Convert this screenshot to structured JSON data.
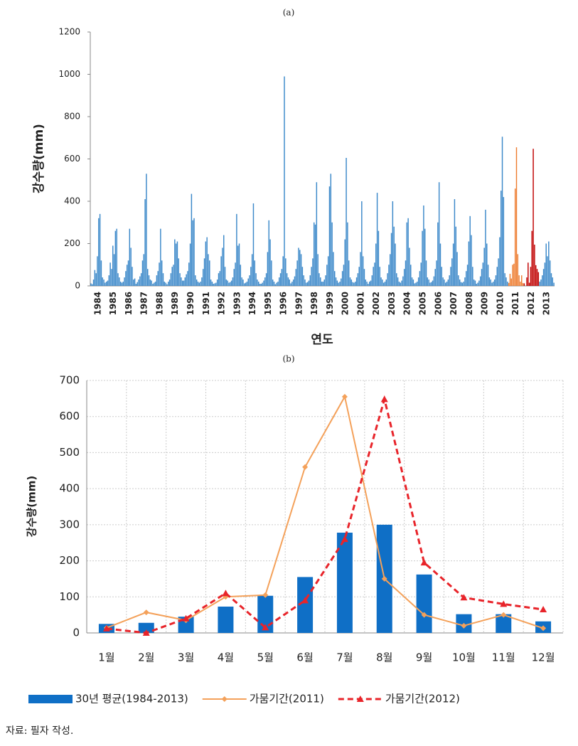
{
  "chart_data": [
    {
      "type": "bar",
      "title": "(a)",
      "ylabel": "강수량(mm)",
      "xlabel": "연도",
      "categories": [
        "1984",
        "1985",
        "1986",
        "1987",
        "1988",
        "1989",
        "1990",
        "1991",
        "1992",
        "1993",
        "1994",
        "1995",
        "1996",
        "1997",
        "1998",
        "1999",
        "2000",
        "2001",
        "2002",
        "2003",
        "2004",
        "2005",
        "2006",
        "2007",
        "2008",
        "2009",
        "2010",
        "2011",
        "2012",
        "2013"
      ],
      "values": [
        [
          12,
          8,
          30,
          75,
          60,
          140,
          320,
          340,
          120,
          40,
          30,
          15
        ],
        [
          20,
          25,
          50,
          110,
          80,
          190,
          150,
          260,
          270,
          60,
          40,
          20
        ],
        [
          15,
          20,
          40,
          70,
          100,
          120,
          270,
          180,
          90,
          30,
          35,
          10
        ],
        [
          18,
          30,
          45,
          60,
          120,
          150,
          410,
          530,
          80,
          50,
          30,
          25
        ],
        [
          10,
          15,
          20,
          50,
          70,
          110,
          270,
          120,
          60,
          20,
          15,
          8
        ],
        [
          20,
          30,
          60,
          90,
          100,
          220,
          200,
          210,
          130,
          60,
          40,
          25
        ],
        [
          25,
          40,
          55,
          70,
          110,
          200,
          435,
          310,
          320,
          50,
          30,
          20
        ],
        [
          15,
          20,
          40,
          80,
          130,
          210,
          230,
          150,
          120,
          30,
          20,
          10
        ],
        [
          12,
          15,
          30,
          60,
          70,
          140,
          180,
          240,
          90,
          30,
          25,
          15
        ],
        [
          18,
          25,
          40,
          80,
          110,
          340,
          190,
          200,
          100,
          40,
          30,
          12
        ],
        [
          15,
          20,
          35,
          50,
          90,
          150,
          390,
          120,
          60,
          30,
          20,
          10
        ],
        [
          10,
          15,
          25,
          40,
          60,
          160,
          310,
          220,
          120,
          30,
          20,
          8
        ],
        [
          15,
          20,
          40,
          60,
          80,
          140,
          990,
          130,
          60,
          40,
          30,
          12
        ],
        [
          20,
          30,
          45,
          80,
          120,
          180,
          170,
          150,
          90,
          50,
          30,
          15
        ],
        [
          18,
          25,
          50,
          90,
          130,
          300,
          290,
          490,
          150,
          60,
          40,
          20
        ],
        [
          20,
          30,
          50,
          100,
          140,
          470,
          530,
          300,
          160,
          70,
          40,
          25
        ],
        [
          15,
          20,
          35,
          70,
          100,
          220,
          605,
          300,
          120,
          40,
          30,
          18
        ],
        [
          15,
          20,
          40,
          60,
          90,
          160,
          400,
          140,
          80,
          30,
          20,
          10
        ],
        [
          20,
          25,
          50,
          90,
          110,
          200,
          440,
          260,
          90,
          40,
          30,
          15
        ],
        [
          20,
          30,
          60,
          100,
          150,
          250,
          400,
          280,
          200,
          60,
          40,
          20
        ],
        [
          15,
          25,
          45,
          80,
          120,
          300,
          320,
          180,
          100,
          40,
          30,
          12
        ],
        [
          15,
          20,
          40,
          70,
          110,
          260,
          380,
          270,
          120,
          40,
          30,
          15
        ],
        [
          18,
          25,
          45,
          80,
          120,
          300,
          490,
          200,
          90,
          40,
          30,
          15
        ],
        [
          20,
          30,
          50,
          90,
          130,
          200,
          410,
          280,
          160,
          50,
          30,
          18
        ],
        [
          15,
          20,
          40,
          70,
          100,
          210,
          330,
          240,
          90,
          30,
          25,
          10
        ],
        [
          15,
          25,
          45,
          80,
          110,
          180,
          360,
          200,
          100,
          40,
          30,
          15
        ],
        [
          20,
          30,
          50,
          90,
          130,
          230,
          450,
          705,
          420,
          60,
          40,
          20
        ],
        [
          14,
          57,
          35,
          100,
          105,
          460,
          655,
          150,
          50,
          20,
          50,
          13
        ],
        [
          12,
          0,
          40,
          110,
          15,
          90,
          260,
          648,
          195,
          98,
          80,
          65
        ],
        [
          20,
          30,
          50,
          80,
          110,
          200,
          140,
          210,
          120,
          60,
          40,
          15
        ]
      ],
      "color": "#3b88c9",
      "highlights": {
        "2011": "#ed7d31",
        "2012": "#c00000"
      },
      "ylim": [
        0,
        1200
      ],
      "yticks": [
        0,
        200,
        400,
        600,
        800,
        1000,
        1200
      ]
    },
    {
      "type": "bar",
      "title": "(b)",
      "ylabel": "강수량(mm)",
      "categories": [
        "1월",
        "2월",
        "3월",
        "4월",
        "5월",
        "6월",
        "7월",
        "8월",
        "9월",
        "10월",
        "11월",
        "12월"
      ],
      "series": [
        {
          "name": "30년 평균(1984-2013)",
          "type": "bar",
          "color": "#0f6fc6",
          "values": [
            25,
            28,
            45,
            73,
            103,
            155,
            278,
            300,
            162,
            52,
            52,
            32
          ]
        },
        {
          "name": "가뭄기간(2011)",
          "type": "line",
          "marker": "diamond",
          "dash": false,
          "color": "#f4a15a",
          "values": [
            14,
            57,
            35,
            100,
            105,
            460,
            655,
            150,
            50,
            20,
            50,
            13
          ]
        },
        {
          "name": "가뭄기간(2012)",
          "type": "line",
          "marker": "triangle",
          "dash": true,
          "color": "#e8242a",
          "values": [
            12,
            0,
            40,
            110,
            15,
            90,
            260,
            648,
            195,
            98,
            80,
            65
          ]
        }
      ],
      "ylim": [
        0,
        700
      ],
      "yticks": [
        0,
        100,
        200,
        300,
        400,
        500,
        600,
        700
      ],
      "grid": true,
      "legend": "bottom"
    }
  ],
  "footer": "자료: 필자 작성."
}
